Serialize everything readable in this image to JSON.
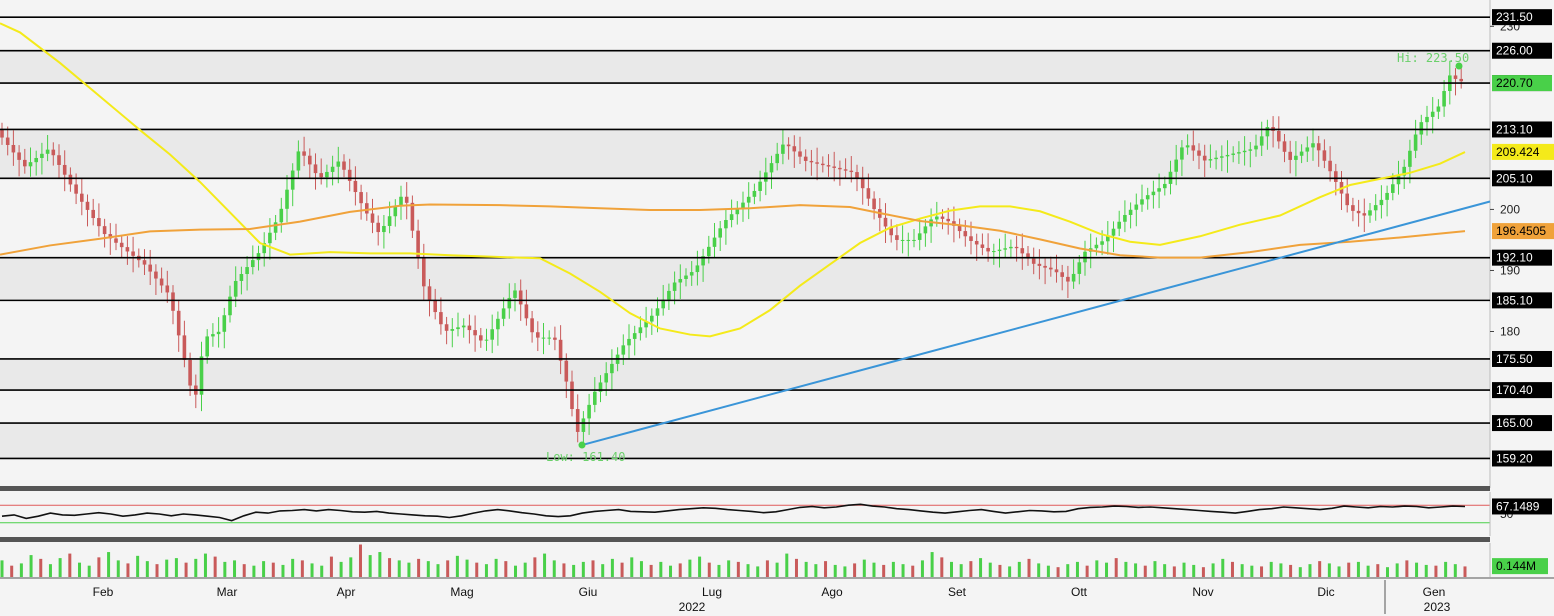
{
  "chart_data": [
    {
      "type": "candlestick",
      "price_axis": {
        "ylim": [
          156.0,
          233.0
        ],
        "tick_labels": [
          "230",
          "200",
          "190",
          "180"
        ]
      },
      "horizontal_levels": [
        "231.50",
        "226.00",
        "220.70",
        "213.10",
        "205.10",
        "192.10",
        "185.10",
        "175.50",
        "170.40",
        "165.00",
        "159.20"
      ],
      "price_tags": [
        {
          "label": "209.424",
          "value": 209.424,
          "color": "#f4ea1a"
        },
        {
          "label": "196.4505",
          "value": 196.4505,
          "color": "#f0a23a"
        }
      ],
      "current_price_tag": {
        "label": "220.70",
        "value": 220.7,
        "color": "#49d049"
      },
      "annotations": [
        {
          "text": "Hi: 223.50",
          "value": 223.5
        },
        {
          "text": "Low: 161.40",
          "value": 161.4
        }
      ],
      "series_color": {
        "up": "#49d049",
        "down": "#c95a5a"
      },
      "moving_averages": [
        {
          "color": "#f4ea1a",
          "points": [
            [
              0,
              230.5
            ],
            [
              20,
              229
            ],
            [
              60,
              224
            ],
            [
              100,
              218.5
            ],
            [
              140,
              213
            ],
            [
              170,
              209
            ],
            [
              200,
              204.5
            ],
            [
              230,
              199.5
            ],
            [
              260,
              194.5
            ],
            [
              290,
              192.6
            ],
            [
              330,
              193
            ],
            [
              370,
              192.8
            ],
            [
              410,
              192.8
            ],
            [
              450,
              192.5
            ],
            [
              500,
              192.2
            ],
            [
              540,
              192
            ],
            [
              570,
              189.5
            ],
            [
              600,
              186.5
            ],
            [
              630,
              183
            ],
            [
              660,
              180.5
            ],
            [
              690,
              179.5
            ],
            [
              710,
              179.2
            ],
            [
              740,
              180.5
            ],
            [
              770,
              183.5
            ],
            [
              800,
              187.5
            ],
            [
              830,
              191
            ],
            [
              860,
              194.5
            ],
            [
              890,
              197
            ],
            [
              920,
              198.5
            ],
            [
              950,
              199.8
            ],
            [
              980,
              200.5
            ],
            [
              1010,
              200.5
            ],
            [
              1040,
              199.7
            ],
            [
              1070,
              198
            ],
            [
              1100,
              196
            ],
            [
              1130,
              194.7
            ],
            [
              1160,
              194.2
            ],
            [
              1200,
              195.6
            ],
            [
              1240,
              197.5
            ],
            [
              1280,
              199
            ],
            [
              1320,
              202
            ],
            [
              1350,
              204
            ],
            [
              1380,
              205
            ],
            [
              1410,
              206
            ],
            [
              1440,
              207.5
            ],
            [
              1465,
              209.4
            ]
          ]
        },
        {
          "color": "#f0a23a",
          "points": [
            [
              0,
              192.6
            ],
            [
              50,
              194.1
            ],
            [
              100,
              195.2
            ],
            [
              150,
              196.4
            ],
            [
              200,
              196.7
            ],
            [
              250,
              196.8
            ],
            [
              300,
              198
            ],
            [
              350,
              199.6
            ],
            [
              400,
              200.6
            ],
            [
              430,
              200.8
            ],
            [
              500,
              200.7
            ],
            [
              550,
              200.5
            ],
            [
              600,
              200.2
            ],
            [
              650,
              199.9
            ],
            [
              700,
              199.9
            ],
            [
              750,
              200.2
            ],
            [
              800,
              200.7
            ],
            [
              850,
              200.4
            ],
            [
              880,
              199.4
            ],
            [
              920,
              198.1
            ],
            [
              960,
              197.4
            ],
            [
              1000,
              196.5
            ],
            [
              1040,
              195.1
            ],
            [
              1080,
              193.6
            ],
            [
              1120,
              192.5
            ],
            [
              1160,
              192.1
            ],
            [
              1200,
              192.1
            ],
            [
              1250,
              193
            ],
            [
              1300,
              194.2
            ],
            [
              1350,
              194.7
            ],
            [
              1400,
              195.4
            ],
            [
              1465,
              196.45
            ]
          ]
        }
      ],
      "trendline": {
        "color": "#3a95d8",
        "from": [
          582,
          161.4
        ],
        "to": [
          1490,
          201.3
        ]
      },
      "x_axis": {
        "months": [
          "Feb",
          "Mar",
          "Apr",
          "Mag",
          "Giu",
          "Lug",
          "Ago",
          "Set",
          "Ott",
          "Nov",
          "Dic",
          "Gen"
        ],
        "years": [
          "2022",
          "2023"
        ]
      }
    },
    {
      "type": "line",
      "title": "",
      "ylim": [
        0,
        100
      ],
      "tick_label": "50",
      "value_tag": {
        "label": "67.1489",
        "value": 67.1489
      },
      "upper_band": {
        "value": 70,
        "color": "#e05a5a"
      },
      "lower_band": {
        "value": 30,
        "color": "#49d049"
      },
      "series_color": "#111111",
      "values": [
        45,
        48,
        40,
        45,
        52,
        48,
        47,
        50,
        53,
        50,
        45,
        48,
        52,
        50,
        46,
        50,
        48,
        45,
        42,
        35,
        46,
        54,
        52,
        57,
        58,
        60,
        57,
        60,
        58,
        55,
        54,
        56,
        52,
        50,
        48,
        46,
        45,
        42,
        46,
        52,
        57,
        60,
        57,
        53,
        50,
        46,
        44,
        46,
        52,
        56,
        58,
        60,
        56,
        55,
        54,
        57,
        60,
        62,
        64,
        63,
        60,
        58,
        56,
        53,
        55,
        60,
        65,
        67,
        64,
        66,
        70,
        72,
        68,
        66,
        62,
        60,
        57,
        54,
        52,
        55,
        58,
        60,
        56,
        52,
        55,
        58,
        57,
        55,
        56,
        62,
        65,
        66,
        68,
        67,
        65,
        66,
        64,
        62,
        60,
        58,
        56,
        54,
        52,
        56,
        60,
        62,
        66,
        64,
        62,
        60,
        63,
        68,
        66,
        64,
        67,
        66,
        68,
        67,
        64,
        66,
        68,
        67
      ]
    },
    {
      "type": "bar",
      "title": "",
      "value_tag": {
        "label": "0.144M",
        "value": 0.144,
        "color": "#49d049"
      },
      "values": [
        0.22,
        0.15,
        0.18,
        0.29,
        0.24,
        0.17,
        0.25,
        0.31,
        0.19,
        0.15,
        0.26,
        0.33,
        0.22,
        0.18,
        0.28,
        0.21,
        0.17,
        0.23,
        0.25,
        0.19,
        0.24,
        0.31,
        0.27,
        0.2,
        0.22,
        0.17,
        0.15,
        0.21,
        0.19,
        0.16,
        0.24,
        0.22,
        0.18,
        0.15,
        0.27,
        0.2,
        0.26,
        0.43,
        0.29,
        0.33,
        0.25,
        0.22,
        0.19,
        0.24,
        0.21,
        0.17,
        0.22,
        0.28,
        0.23,
        0.19,
        0.17,
        0.24,
        0.21,
        0.15,
        0.19,
        0.26,
        0.31,
        0.22,
        0.18,
        0.16,
        0.2,
        0.22,
        0.17,
        0.24,
        0.19,
        0.26,
        0.21,
        0.16,
        0.2,
        0.15,
        0.18,
        0.23,
        0.27,
        0.19,
        0.16,
        0.22,
        0.2,
        0.17,
        0.14,
        0.22,
        0.19,
        0.31,
        0.24,
        0.2,
        0.17,
        0.21,
        0.16,
        0.14,
        0.18,
        0.23,
        0.19,
        0.16,
        0.2,
        0.17,
        0.15,
        0.22,
        0.33,
        0.26,
        0.2,
        0.17,
        0.21,
        0.25,
        0.19,
        0.16,
        0.14,
        0.2,
        0.24,
        0.18,
        0.15,
        0.13,
        0.17,
        0.2,
        0.15,
        0.22,
        0.19,
        0.25,
        0.2,
        0.18,
        0.15,
        0.21,
        0.17,
        0.14,
        0.19,
        0.16,
        0.13,
        0.18,
        0.24,
        0.2,
        0.17,
        0.15,
        0.14,
        0.2,
        0.18,
        0.16,
        0.13,
        0.17,
        0.21,
        0.18,
        0.14,
        0.19,
        0.2,
        0.15,
        0.17,
        0.13,
        0.18,
        0.22,
        0.19,
        0.16,
        0.15,
        0.2,
        0.17,
        0.14
      ]
    }
  ]
}
